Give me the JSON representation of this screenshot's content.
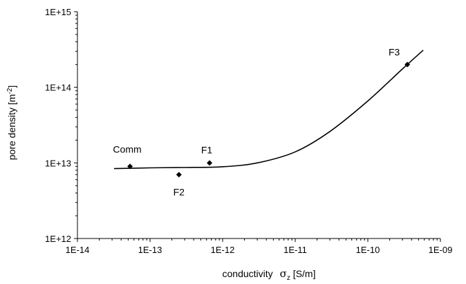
{
  "chart_data": {
    "type": "scatter",
    "x_scale": "log",
    "y_scale": "log",
    "xlim": [
      1e-14,
      1e-09
    ],
    "ylim": [
      1000000000000.0,
      1000000000000000.0
    ],
    "x_ticks": [
      "1E-14",
      "1E-13",
      "1E-12",
      "1E-11",
      "1E-10",
      "1E-09"
    ],
    "y_ticks": [
      "1E+12",
      "1E+13",
      "1E+14",
      "1E+15"
    ],
    "xlabel": {
      "text": "conductivity",
      "symbol": "σ",
      "subscript": "z",
      "unit": " [S/m]"
    },
    "ylabel": {
      "text": "pore density  [m",
      "superscript": "-2",
      "suffix": "]"
    },
    "grid": false,
    "points": [
      {
        "label": "Comm",
        "x": 5.3e-14,
        "y": 9000000000000.0
      },
      {
        "label": "F2",
        "x": 2.5e-13,
        "y": 7000000000000.0
      },
      {
        "label": "F1",
        "x": 6.6e-13,
        "y": 10000000000000.0
      },
      {
        "label": "F3",
        "x": 3.5e-10,
        "y": 200000000000000.0
      }
    ],
    "fit_curve": {
      "x": [
        3.2e-14,
        1e-13,
        3e-13,
        1e-12,
        3e-12,
        1e-11,
        3e-11,
        1e-10,
        3e-10,
        5.8e-10
      ],
      "y": [
        8400000000000.0,
        8600000000000.0,
        8700000000000.0,
        8900000000000.0,
        10000000000000.0,
        14000000000000.0,
        26000000000000.0,
        66000000000000.0,
        175000000000000.0,
        310000000000000.0
      ]
    },
    "colors": {
      "marker": "#000000",
      "line": "#000000",
      "axis": "#000000"
    }
  }
}
